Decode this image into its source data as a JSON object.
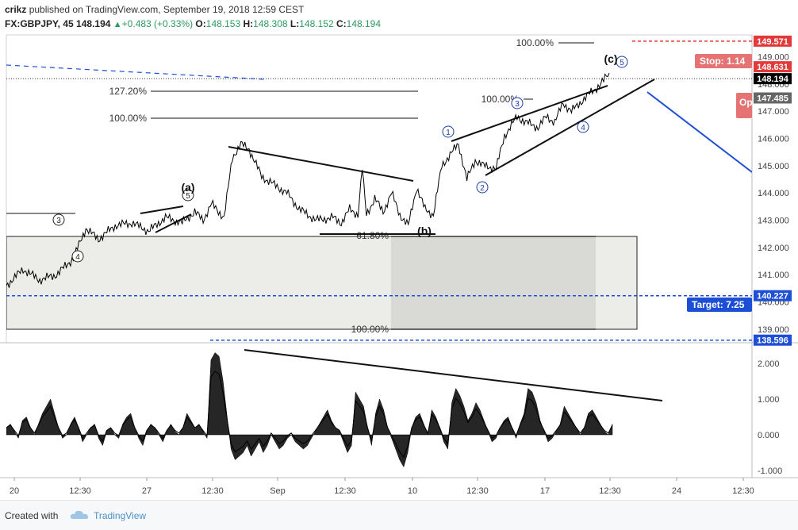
{
  "header": {
    "author": "crikz",
    "published_text": "published on TradingView.com, September 19, 2018 12:59 CEST",
    "symbol": "FX:GBPJPY, 45",
    "last": "148.194",
    "change": "+0.483 (+0.33%)",
    "o_label": "O:",
    "o_value": "148.153",
    "h_label": "H:",
    "h_value": "148.308",
    "l_label": "L:",
    "l_value": "148.152",
    "c_label": "C:",
    "c_value": "148.194",
    "up_glyph": "▲"
  },
  "footer": {
    "created_with": "Created with",
    "brand": "TradingView",
    "logo_icon": "tradingview-cloud-icon"
  },
  "colors": {
    "price": "#000000",
    "target": "#1c4fd6",
    "stop": "#e23a3a",
    "box_light": "#ebebe7",
    "box_dark": "#dadad6"
  },
  "chart_data": [
    {
      "type": "line",
      "series_name": "GBPJPY price (45 min)",
      "ylim": [
        138.5,
        149.8
      ],
      "y_ticks": [
        "149.000",
        "148.000",
        "147.000",
        "146.000",
        "145.000",
        "144.000",
        "143.000",
        "142.000",
        "141.000",
        "140.000",
        "139.000"
      ],
      "x_ticks": [
        "20",
        "12:30",
        "27",
        "12:30",
        "Sep",
        "12:30",
        "10",
        "12:30",
        "17",
        "12:30",
        "24",
        "12:30"
      ],
      "anchors": [
        [
          0,
          140.6
        ],
        [
          4,
          141.2
        ],
        [
          8,
          140.8
        ],
        [
          12,
          141.0
        ],
        [
          16,
          141.6
        ],
        [
          19,
          142.7
        ],
        [
          22,
          142.3
        ],
        [
          26,
          142.8
        ],
        [
          30,
          142.9
        ],
        [
          34,
          142.6
        ],
        [
          38,
          143.1
        ],
        [
          42,
          142.9
        ],
        [
          45,
          143.3
        ],
        [
          47,
          143.0
        ],
        [
          49,
          143.6
        ],
        [
          52,
          143.1
        ],
        [
          54,
          145.3
        ],
        [
          56,
          145.8
        ],
        [
          58,
          145.6
        ],
        [
          61,
          144.6
        ],
        [
          64,
          144.3
        ],
        [
          67,
          144.0
        ],
        [
          70,
          143.4
        ],
        [
          74,
          143.0
        ],
        [
          78,
          143.1
        ],
        [
          80,
          142.9
        ],
        [
          82,
          143.4
        ],
        [
          84,
          143.2
        ],
        [
          85,
          144.9
        ],
        [
          86,
          143.2
        ],
        [
          88,
          143.8
        ],
        [
          90,
          143.3
        ],
        [
          92,
          144.0
        ],
        [
          94,
          143.2
        ],
        [
          96,
          142.8
        ],
        [
          98,
          144.2
        ],
        [
          100,
          143.4
        ],
        [
          102,
          143.2
        ],
        [
          104,
          145.0
        ],
        [
          108,
          145.8
        ],
        [
          110,
          144.5
        ],
        [
          112,
          145.2
        ],
        [
          114,
          145.0
        ],
        [
          117,
          144.9
        ],
        [
          119,
          146.1
        ],
        [
          122,
          146.8
        ],
        [
          124,
          146.6
        ],
        [
          127,
          146.4
        ],
        [
          129,
          146.8
        ],
        [
          131,
          146.6
        ],
        [
          133,
          147.3
        ],
        [
          135,
          147.0
        ],
        [
          137,
          147.3
        ],
        [
          139,
          147.6
        ],
        [
          142,
          148.0
        ],
        [
          144,
          148.4
        ]
      ],
      "anchor_x_max": 144,
      "levels": [
        {
          "value": 149.571,
          "label": "149.571",
          "color": "#e23a3a"
        },
        {
          "value": 148.631,
          "label": "148.631",
          "color": "#e23a3a"
        },
        {
          "value": 148.194,
          "label": "148.194",
          "color": "#000000"
        },
        {
          "value": 147.485,
          "label": "147.485",
          "color": "#666666"
        },
        {
          "value": 140.227,
          "label": "140.227",
          "color": "#1c4fd6"
        },
        {
          "value": 138.596,
          "label": "138.596",
          "color": "#1c4fd6"
        }
      ],
      "fib_labels": [
        "127.20%",
        "100.00%",
        "100.00%",
        "100.00%",
        "61.80%",
        "100.00%"
      ],
      "wave_labels": {
        "a": "(a)",
        "b": "(b)",
        "c": "(c)",
        "subwaves": [
          "1",
          "2",
          "3",
          "4",
          "5"
        ]
      },
      "tags": {
        "stop": "Stop: 1.14",
        "target": "Target: 7.25",
        "open": "Op"
      }
    },
    {
      "type": "area",
      "series_name": "momentum oscillator",
      "ylim": [
        -1.1,
        2.5
      ],
      "y_ticks": [
        "2.000",
        "1.000",
        "0.000",
        "-1.000"
      ],
      "values": [
        0.2,
        0.3,
        0.1,
        -0.1,
        0.4,
        0.5,
        0.2,
        0.0,
        0.3,
        0.6,
        0.8,
        1.0,
        0.6,
        0.2,
        -0.1,
        0.0,
        0.3,
        0.5,
        0.2,
        -0.2,
        0.0,
        0.2,
        0.3,
        -0.1,
        -0.3,
        0.1,
        0.2,
        0.0,
        -0.1,
        0.3,
        0.5,
        0.6,
        0.2,
        -0.1,
        -0.3,
        0.1,
        0.3,
        0.2,
        0.0,
        -0.2,
        0.1,
        0.3,
        0.1,
        0.0,
        0.2,
        0.6,
        0.4,
        0.2,
        0.3,
        0.1,
        -0.1,
        2.1,
        2.3,
        2.2,
        1.5,
        0.5,
        -0.4,
        -0.7,
        -0.6,
        -0.5,
        -0.3,
        -0.6,
        -0.4,
        -0.2,
        -0.5,
        -0.3,
        0.0,
        -0.2,
        -0.4,
        -0.3,
        -0.1,
        0.0,
        -0.2,
        -0.3,
        -0.4,
        -0.3,
        -0.1,
        0.1,
        0.3,
        0.5,
        0.7,
        0.4,
        0.2,
        0.1,
        -0.2,
        -0.5,
        -0.3,
        1.2,
        1.0,
        0.8,
        0.2,
        -0.3,
        0.6,
        1.0,
        0.7,
        0.2,
        -0.1,
        -0.4,
        -0.7,
        -0.9,
        -0.5,
        0.2,
        0.5,
        0.6,
        0.3,
        0.0,
        0.7,
        0.5,
        0.2,
        -0.2,
        -0.4,
        0.9,
        1.3,
        1.1,
        0.8,
        0.4,
        0.6,
        0.9,
        0.7,
        0.4,
        0.1,
        -0.2,
        -0.1,
        0.2,
        0.4,
        0.5,
        0.2,
        -0.1,
        0.3,
        0.6,
        1.3,
        1.2,
        0.9,
        0.4,
        0.1,
        -0.2,
        -0.1,
        0.1,
        0.3,
        0.8,
        0.6,
        0.4,
        0.2,
        0.0,
        0.2,
        0.6,
        0.7,
        0.5,
        0.3,
        0.1,
        0.0,
        0.3
      ]
    }
  ]
}
